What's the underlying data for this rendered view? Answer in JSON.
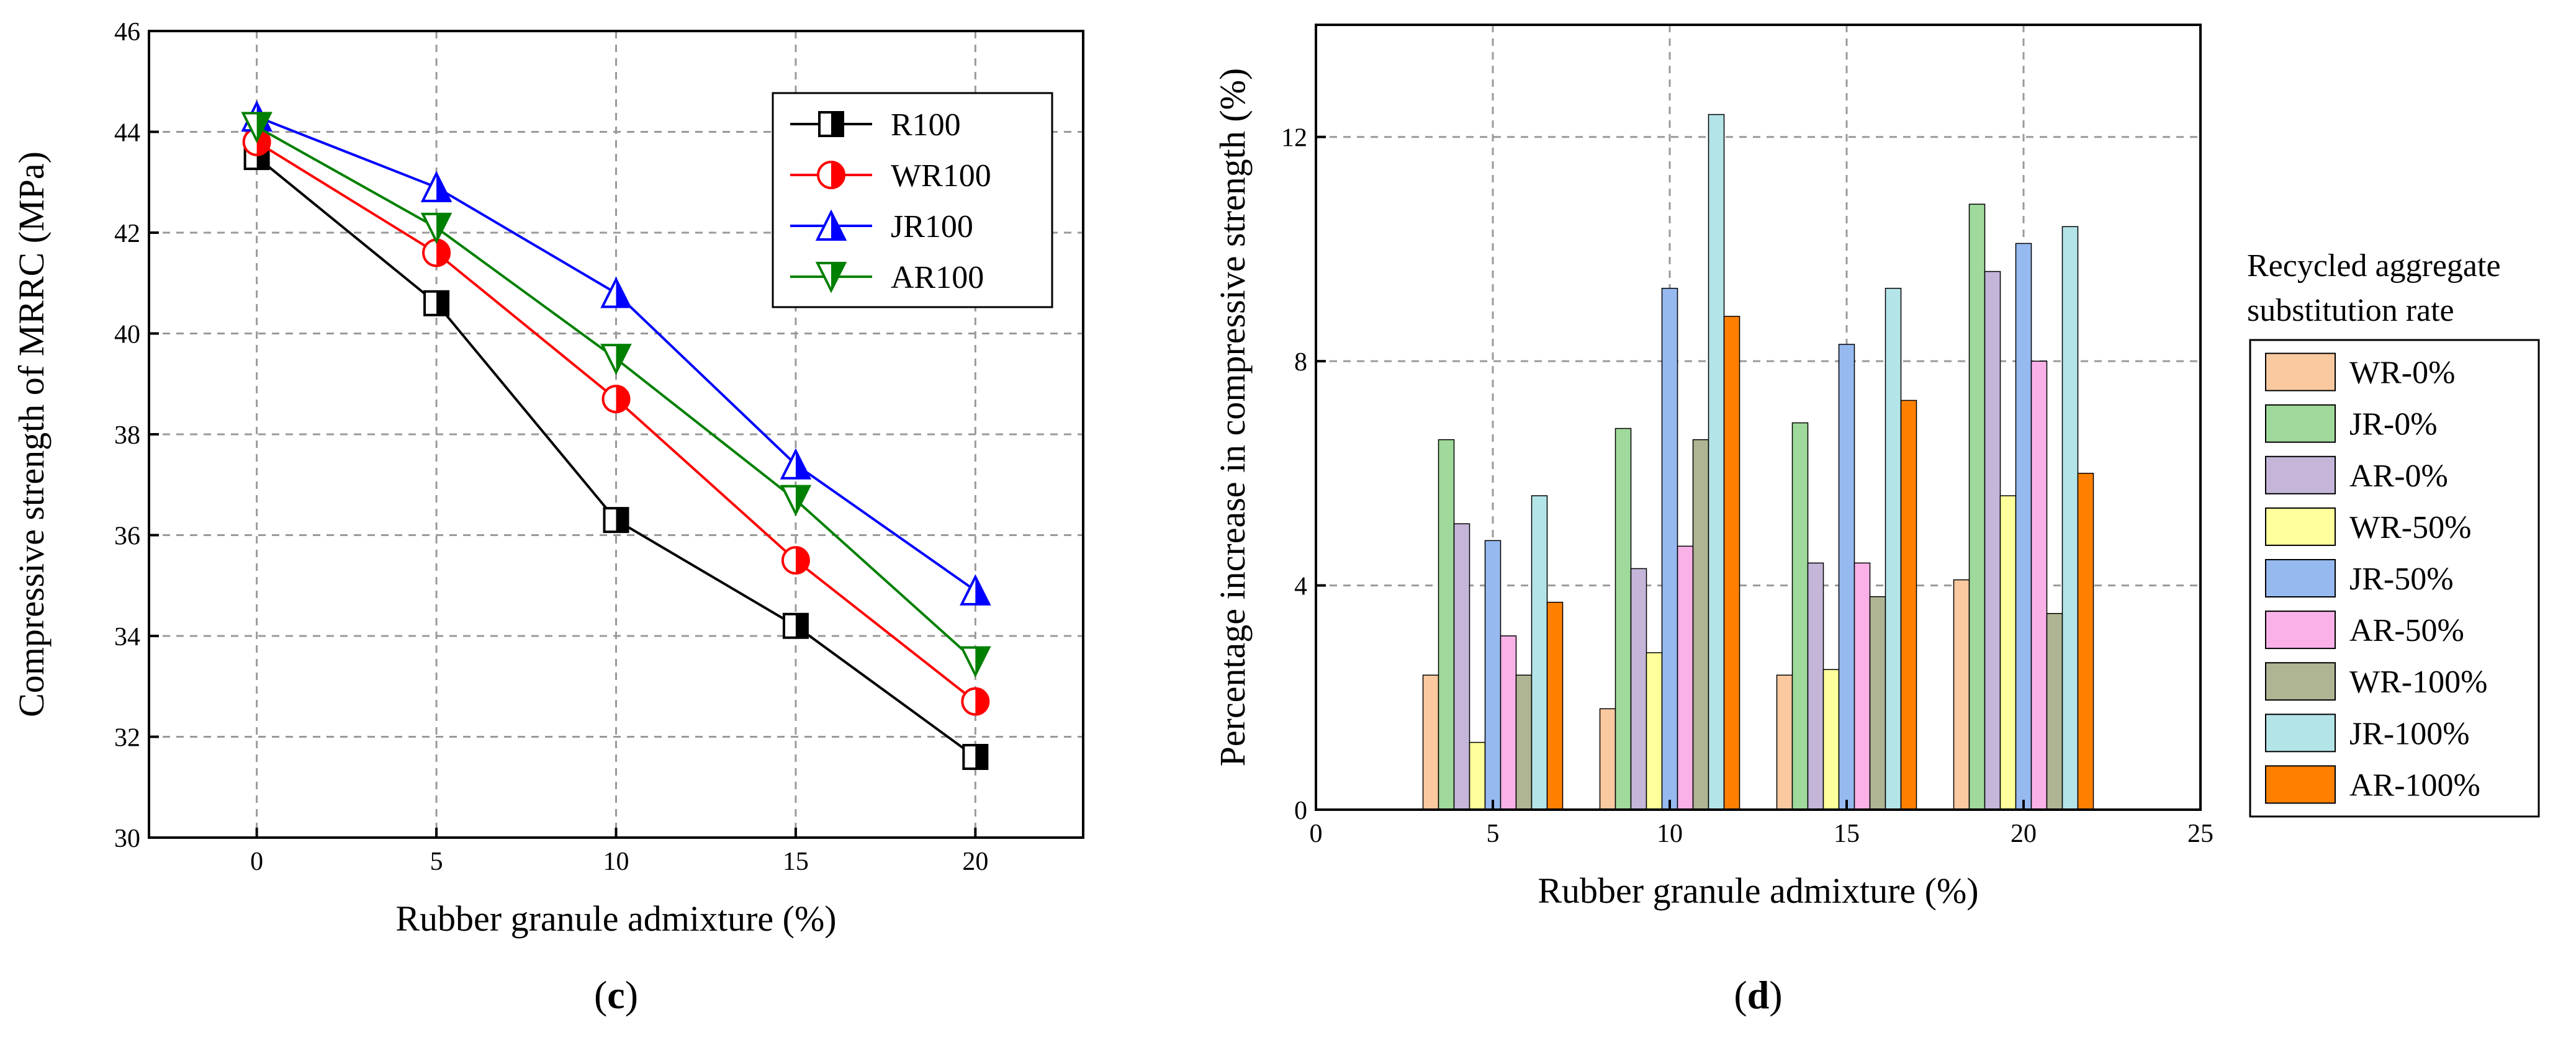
{
  "chart_data": [
    {
      "type": "line",
      "panel_label": "c",
      "xlabel": "Rubber granule admixture (%)",
      "ylabel": "Compressive strength of MRRC (MPa)",
      "x": [
        0,
        5,
        10,
        15,
        20
      ],
      "xticks": [
        "0",
        "5",
        "10",
        "15",
        "20"
      ],
      "xlim": [
        -3,
        23
      ],
      "ylim": [
        30,
        46
      ],
      "yticks": [
        "30",
        "32",
        "34",
        "36",
        "38",
        "40",
        "42",
        "44",
        "46"
      ],
      "grid": true,
      "legend_position": "top-right",
      "series": [
        {
          "name": "R100",
          "color": "#000000",
          "marker": "half-square",
          "values": [
            43.5,
            40.6,
            36.3,
            34.2,
            31.6
          ]
        },
        {
          "name": "WR100",
          "color": "#ff0000",
          "marker": "half-circle",
          "values": [
            43.8,
            41.6,
            38.7,
            35.5,
            32.7
          ]
        },
        {
          "name": "JR100",
          "color": "#0000ff",
          "marker": "half-triangle-up",
          "values": [
            44.3,
            42.9,
            40.8,
            37.4,
            34.9
          ]
        },
        {
          "name": "AR100",
          "color": "#008000",
          "marker": "half-triangle-down",
          "values": [
            44.1,
            42.1,
            39.5,
            36.7,
            33.5
          ]
        }
      ]
    },
    {
      "type": "bar",
      "panel_label": "d",
      "xlabel": "Rubber granule admixture (%)",
      "ylabel": "Percentage increase in compressive strength (%)",
      "categories": [
        5,
        10,
        15,
        20
      ],
      "xticks": [
        "0",
        "5",
        "10",
        "15",
        "20",
        "25"
      ],
      "xlim": [
        0,
        25
      ],
      "ylim": [
        0,
        14
      ],
      "yticks": [
        "0",
        "4",
        "8",
        "12"
      ],
      "grid": true,
      "legend_position": "right-outside",
      "legend_title": [
        "Recycled aggregate",
        "substitution rate"
      ],
      "series": [
        {
          "name": "WR-0%",
          "color": "#fac9a0",
          "values": [
            2.4,
            1.8,
            2.4,
            4.1
          ]
        },
        {
          "name": "JR-0%",
          "color": "#9fd99b",
          "values": [
            6.6,
            6.8,
            6.9,
            10.8
          ]
        },
        {
          "name": "AR-0%",
          "color": "#c4b5d9",
          "values": [
            5.1,
            4.3,
            4.4,
            9.6
          ]
        },
        {
          "name": "WR-50%",
          "color": "#ffff9b",
          "values": [
            1.2,
            2.8,
            2.5,
            5.6
          ]
        },
        {
          "name": "JR-50%",
          "color": "#96b9f0",
          "values": [
            4.8,
            9.3,
            8.3,
            10.1
          ]
        },
        {
          "name": "AR-50%",
          "color": "#f9b1e8",
          "values": [
            3.1,
            4.7,
            4.4,
            8.0
          ]
        },
        {
          "name": "WR-100%",
          "color": "#afb593",
          "values": [
            2.4,
            6.6,
            3.8,
            3.5
          ]
        },
        {
          "name": "JR-100%",
          "color": "#b3e4e8",
          "values": [
            5.6,
            12.4,
            9.3,
            10.4
          ]
        },
        {
          "name": "AR-100%",
          "color": "#ff8000",
          "values": [
            3.7,
            8.8,
            7.3,
            6.0
          ]
        }
      ]
    }
  ]
}
